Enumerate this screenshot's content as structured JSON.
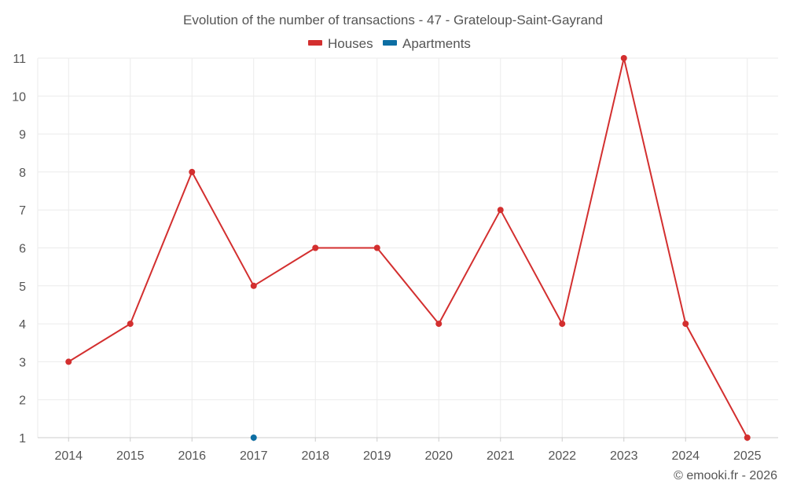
{
  "chart_data": {
    "type": "line",
    "title": "Evolution of the number of transactions - 47 - Grateloup-Saint-Gayrand",
    "categories": [
      "2014",
      "2015",
      "2016",
      "2017",
      "2018",
      "2019",
      "2020",
      "2021",
      "2022",
      "2023",
      "2024",
      "2025"
    ],
    "series": [
      {
        "name": "Houses",
        "color": "#d32f2f",
        "values": [
          3,
          4,
          8,
          5,
          6,
          6,
          4,
          7,
          4,
          11,
          4,
          1
        ]
      },
      {
        "name": "Apartments",
        "color": "#0d6ea3",
        "values": [
          null,
          null,
          null,
          1,
          null,
          null,
          null,
          null,
          null,
          null,
          null,
          null
        ]
      }
    ],
    "ylim": [
      1,
      11
    ],
    "yticks": [
      1,
      2,
      3,
      4,
      5,
      6,
      7,
      8,
      9,
      10,
      11
    ],
    "grid": true,
    "legend": "top-center"
  },
  "credit": "© emooki.fr - 2026"
}
